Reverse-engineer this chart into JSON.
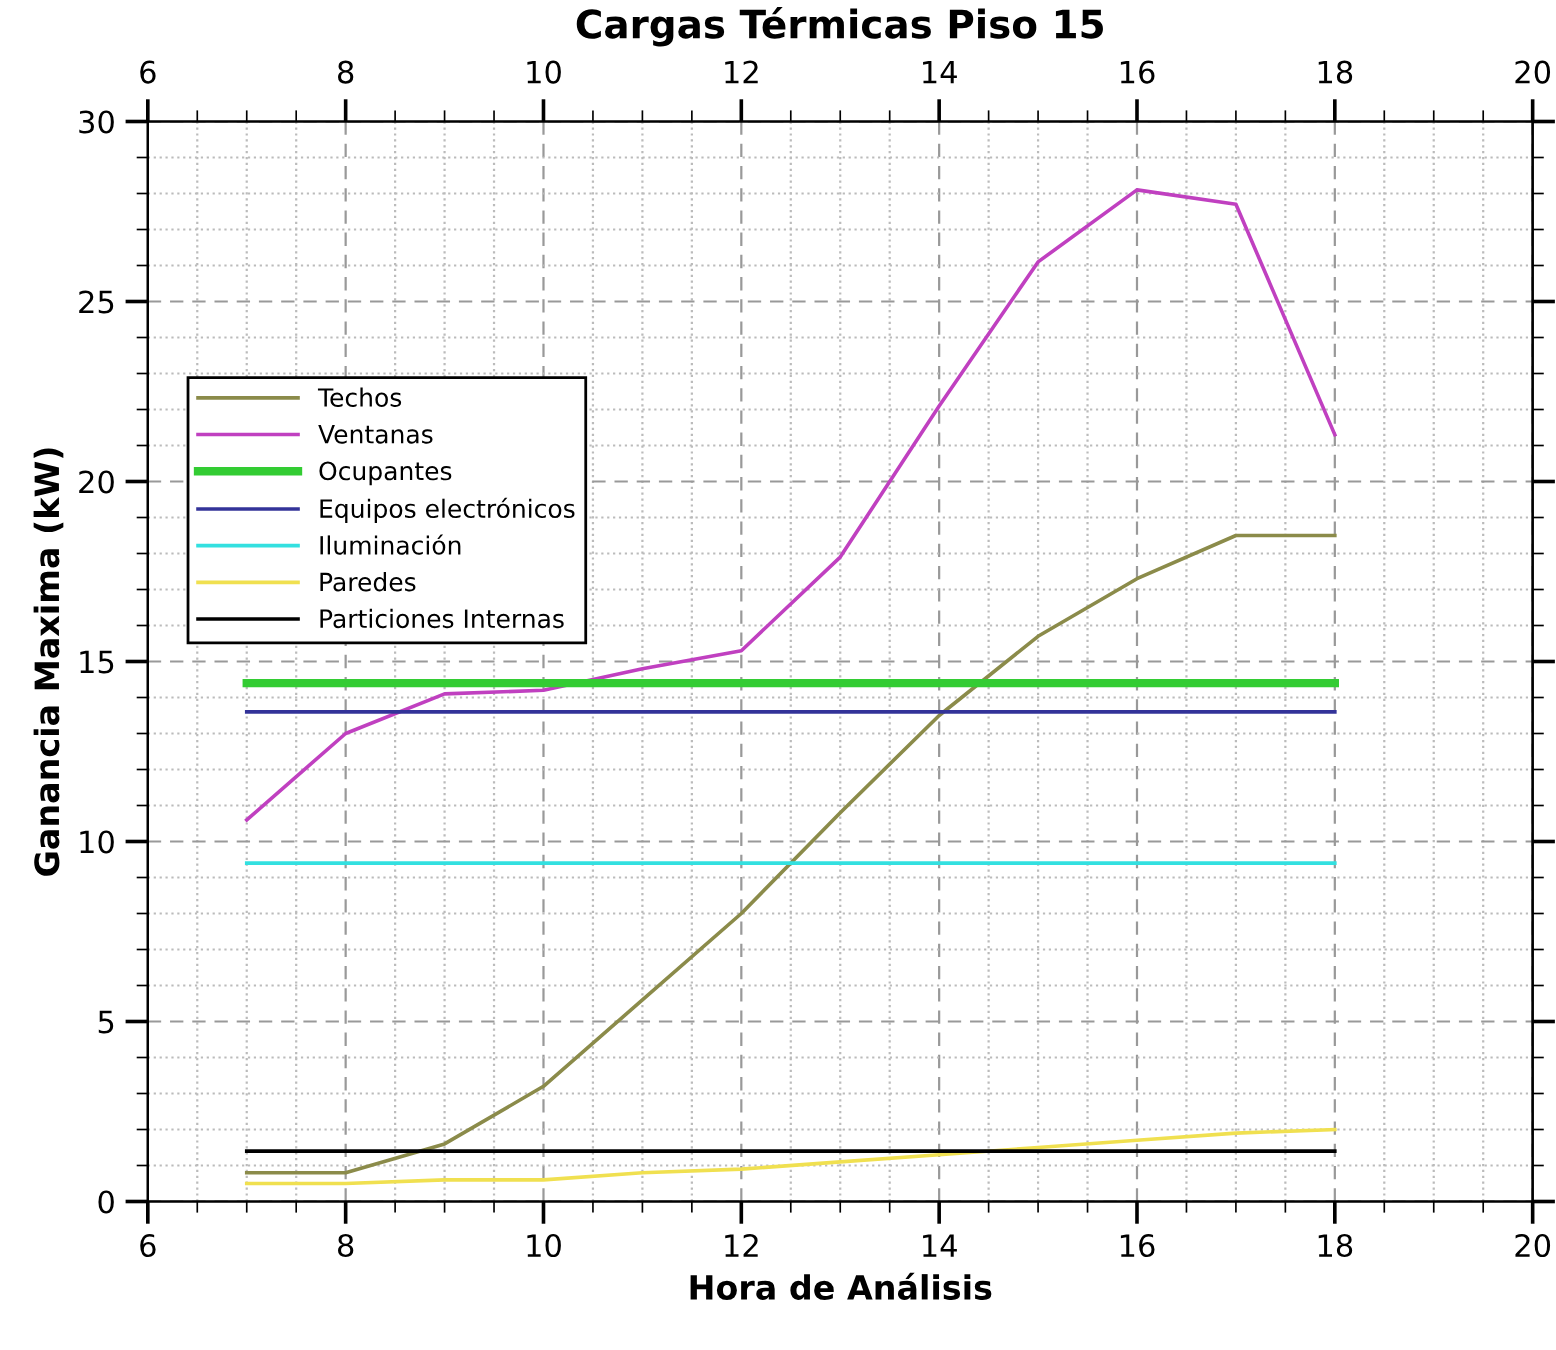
{
  "chart_data": {
    "type": "line",
    "title": "Cargas Térmicas Piso 15",
    "xlabel": "Hora de Análisis",
    "ylabel": "Ganancia Maxima (kW)",
    "x": [
      7,
      8,
      9,
      10,
      11,
      12,
      13,
      14,
      15,
      16,
      17,
      18
    ],
    "series": [
      {
        "name": "Techos",
        "color": "#8b8b4a",
        "values": [
          0.8,
          0.8,
          1.6,
          3.2,
          5.6,
          8.0,
          10.8,
          13.5,
          15.7,
          17.3,
          18.5,
          18.5
        ]
      },
      {
        "name": "Ventanas",
        "color": "#c040c0",
        "values": [
          10.6,
          13.0,
          14.1,
          14.2,
          14.8,
          15.3,
          17.9,
          22.1,
          26.1,
          28.1,
          27.7,
          21.3
        ]
      },
      {
        "name": "Ocupantes",
        "color": "#33cc33",
        "values": [
          14.4,
          14.4,
          14.4,
          14.4,
          14.4,
          14.4,
          14.4,
          14.4,
          14.4,
          14.4,
          14.4,
          14.4
        ]
      },
      {
        "name": "Equipos electrónicos",
        "color": "#333399",
        "values": [
          13.6,
          13.6,
          13.6,
          13.6,
          13.6,
          13.6,
          13.6,
          13.6,
          13.6,
          13.6,
          13.6,
          13.6
        ]
      },
      {
        "name": "Iluminación",
        "color": "#33e0e0",
        "values": [
          9.4,
          9.4,
          9.4,
          9.4,
          9.4,
          9.4,
          9.4,
          9.4,
          9.4,
          9.4,
          9.4,
          9.4
        ]
      },
      {
        "name": "Paredes",
        "color": "#f0e050",
        "values": [
          0.5,
          0.5,
          0.6,
          0.6,
          0.8,
          0.9,
          1.1,
          1.3,
          1.5,
          1.7,
          1.9,
          2.0
        ]
      },
      {
        "name": "Particiones Internas",
        "color": "#000000",
        "values": [
          1.4,
          1.4,
          1.4,
          1.4,
          1.4,
          1.4,
          1.4,
          1.4,
          1.4,
          1.4,
          1.4,
          1.4
        ]
      }
    ],
    "xlim": [
      6,
      20
    ],
    "xticks": [
      6,
      8,
      10,
      12,
      14,
      16,
      18,
      20
    ],
    "x2lim": [
      6,
      20
    ],
    "x2ticks": [
      6,
      8,
      10,
      12,
      14,
      16,
      18,
      20
    ],
    "ylim": [
      0,
      30
    ],
    "yticks": [
      0,
      5,
      10,
      15,
      20,
      25,
      30
    ],
    "grid": true,
    "legend": "left",
    "marker": "none",
    "line_style": "solid"
  }
}
